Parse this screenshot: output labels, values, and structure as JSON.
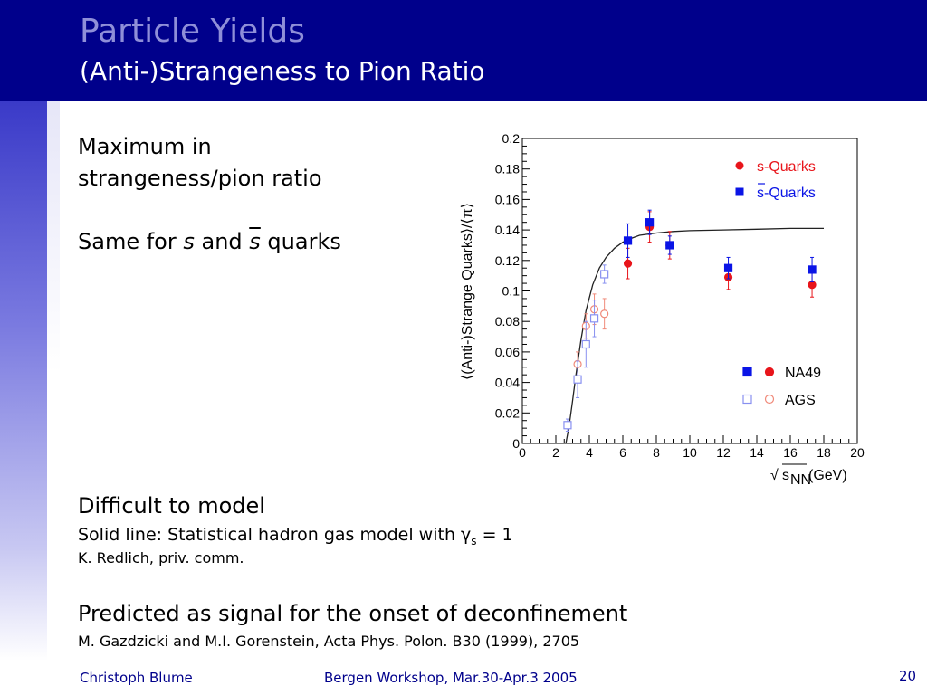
{
  "header": {
    "title": "Particle Yields",
    "subtitle": "(Anti-)Strangeness to Pion Ratio"
  },
  "body": {
    "point1_line1": "Maximum in",
    "point1_line2": "strangeness/pion ratio",
    "point2_prefix": "Same for ",
    "point2_s": "s",
    "point2_and": " and ",
    "point2_sbar": "s",
    "point2_suffix": " quarks",
    "point3_heading": "Difficult to model",
    "point3_line1_prefix": "Solid line: Statistical hadron gas model with ",
    "point3_gamma": "γ",
    "point3_sub": "s",
    "point3_eq": " = 1",
    "point3_line2": "K. Redlich, priv. comm.",
    "point4_heading": "Predicted as signal for the onset of deconfinement",
    "point4_ref": "M. Gazdzicki and M.I. Gorenstein, Acta Phys. Polon. B30 (1999), 2705"
  },
  "footer": {
    "author": "Christoph Blume",
    "event": "Bergen Workshop, Mar.30-Apr.3 2005",
    "page": "20"
  },
  "colors": {
    "header_bg": "#00008b",
    "red": "#e8151b",
    "blue": "#0a14e6",
    "light_red": "#f08a7a",
    "light_blue": "#8890f0"
  },
  "chart_data": {
    "type": "scatter",
    "ylabel": "⟨(Anti-)Strange Quarks⟩/⟨π⟩",
    "xlabel_sqrt_symbol": "√",
    "xlabel_var": "s",
    "xlabel_sub": "NN",
    "xlabel_unit": " (GeV)",
    "xlim": [
      0,
      20
    ],
    "ylim": [
      0,
      0.2
    ],
    "x_ticks": [
      "0",
      "2",
      "4",
      "6",
      "8",
      "10",
      "12",
      "14",
      "16",
      "18",
      "20"
    ],
    "y_ticks": [
      "0",
      "0.02",
      "0.04",
      "0.06",
      "0.08",
      "0.1",
      "0.12",
      "0.14",
      "0.16",
      "0.18",
      "0.2"
    ],
    "legend_top": [
      {
        "label": "s-Quarks",
        "overline": false,
        "marker": "circle",
        "color": "#e8151b"
      },
      {
        "label": "s-Quarks",
        "overline": true,
        "marker": "square",
        "color": "#0a14e6"
      }
    ],
    "legend_bottom": [
      {
        "label": "NA49",
        "filled": true
      },
      {
        "label": "AGS",
        "filled": false
      }
    ],
    "series": [
      {
        "name": "s-Quarks",
        "experiment": "NA49",
        "marker": "circle",
        "filled": true,
        "color": "#e8151b",
        "points": [
          [
            6.3,
            0.118,
            0.01
          ],
          [
            7.6,
            0.142,
            0.01
          ],
          [
            8.8,
            0.13,
            0.009
          ],
          [
            12.3,
            0.109,
            0.008
          ],
          [
            17.3,
            0.104,
            0.008
          ]
        ]
      },
      {
        "name": "s-Quarks (anti)",
        "experiment": "NA49",
        "marker": "square",
        "filled": true,
        "color": "#0a14e6",
        "points": [
          [
            6.3,
            0.133,
            0.011
          ],
          [
            7.6,
            0.145,
            0.008
          ],
          [
            8.8,
            0.13,
            0.006
          ],
          [
            12.3,
            0.115,
            0.007
          ],
          [
            17.3,
            0.114,
            0.008
          ]
        ]
      },
      {
        "name": "s-Quarks",
        "experiment": "AGS",
        "marker": "circle",
        "filled": false,
        "color": "#f08a7a",
        "points": [
          [
            3.3,
            0.052,
            0.008
          ],
          [
            3.8,
            0.077,
            0.008
          ],
          [
            4.3,
            0.088,
            0.01
          ],
          [
            4.9,
            0.085,
            0.01
          ]
        ]
      },
      {
        "name": "s-Quarks (anti)",
        "experiment": "AGS",
        "marker": "square",
        "filled": false,
        "color": "#8890f0",
        "points": [
          [
            2.7,
            0.012,
            0.004
          ],
          [
            3.3,
            0.042,
            0.012
          ],
          [
            3.8,
            0.065,
            0.015
          ],
          [
            4.3,
            0.082,
            0.012
          ],
          [
            4.9,
            0.111,
            0.006
          ]
        ]
      }
    ],
    "model_curve": {
      "name": "Statistical hadron gas model",
      "points": [
        [
          2.6,
          0.0
        ],
        [
          2.8,
          0.012
        ],
        [
          3.0,
          0.028
        ],
        [
          3.2,
          0.045
        ],
        [
          3.5,
          0.068
        ],
        [
          3.8,
          0.087
        ],
        [
          4.2,
          0.104
        ],
        [
          4.6,
          0.115
        ],
        [
          5.0,
          0.122
        ],
        [
          5.5,
          0.128
        ],
        [
          6.0,
          0.132
        ],
        [
          6.5,
          0.1345
        ],
        [
          7.0,
          0.1365
        ],
        [
          8.0,
          0.138
        ],
        [
          9.0,
          0.139
        ],
        [
          10.0,
          0.1395
        ],
        [
          12.0,
          0.14
        ],
        [
          14.0,
          0.1405
        ],
        [
          16.0,
          0.141
        ],
        [
          18.0,
          0.141
        ]
      ]
    }
  }
}
